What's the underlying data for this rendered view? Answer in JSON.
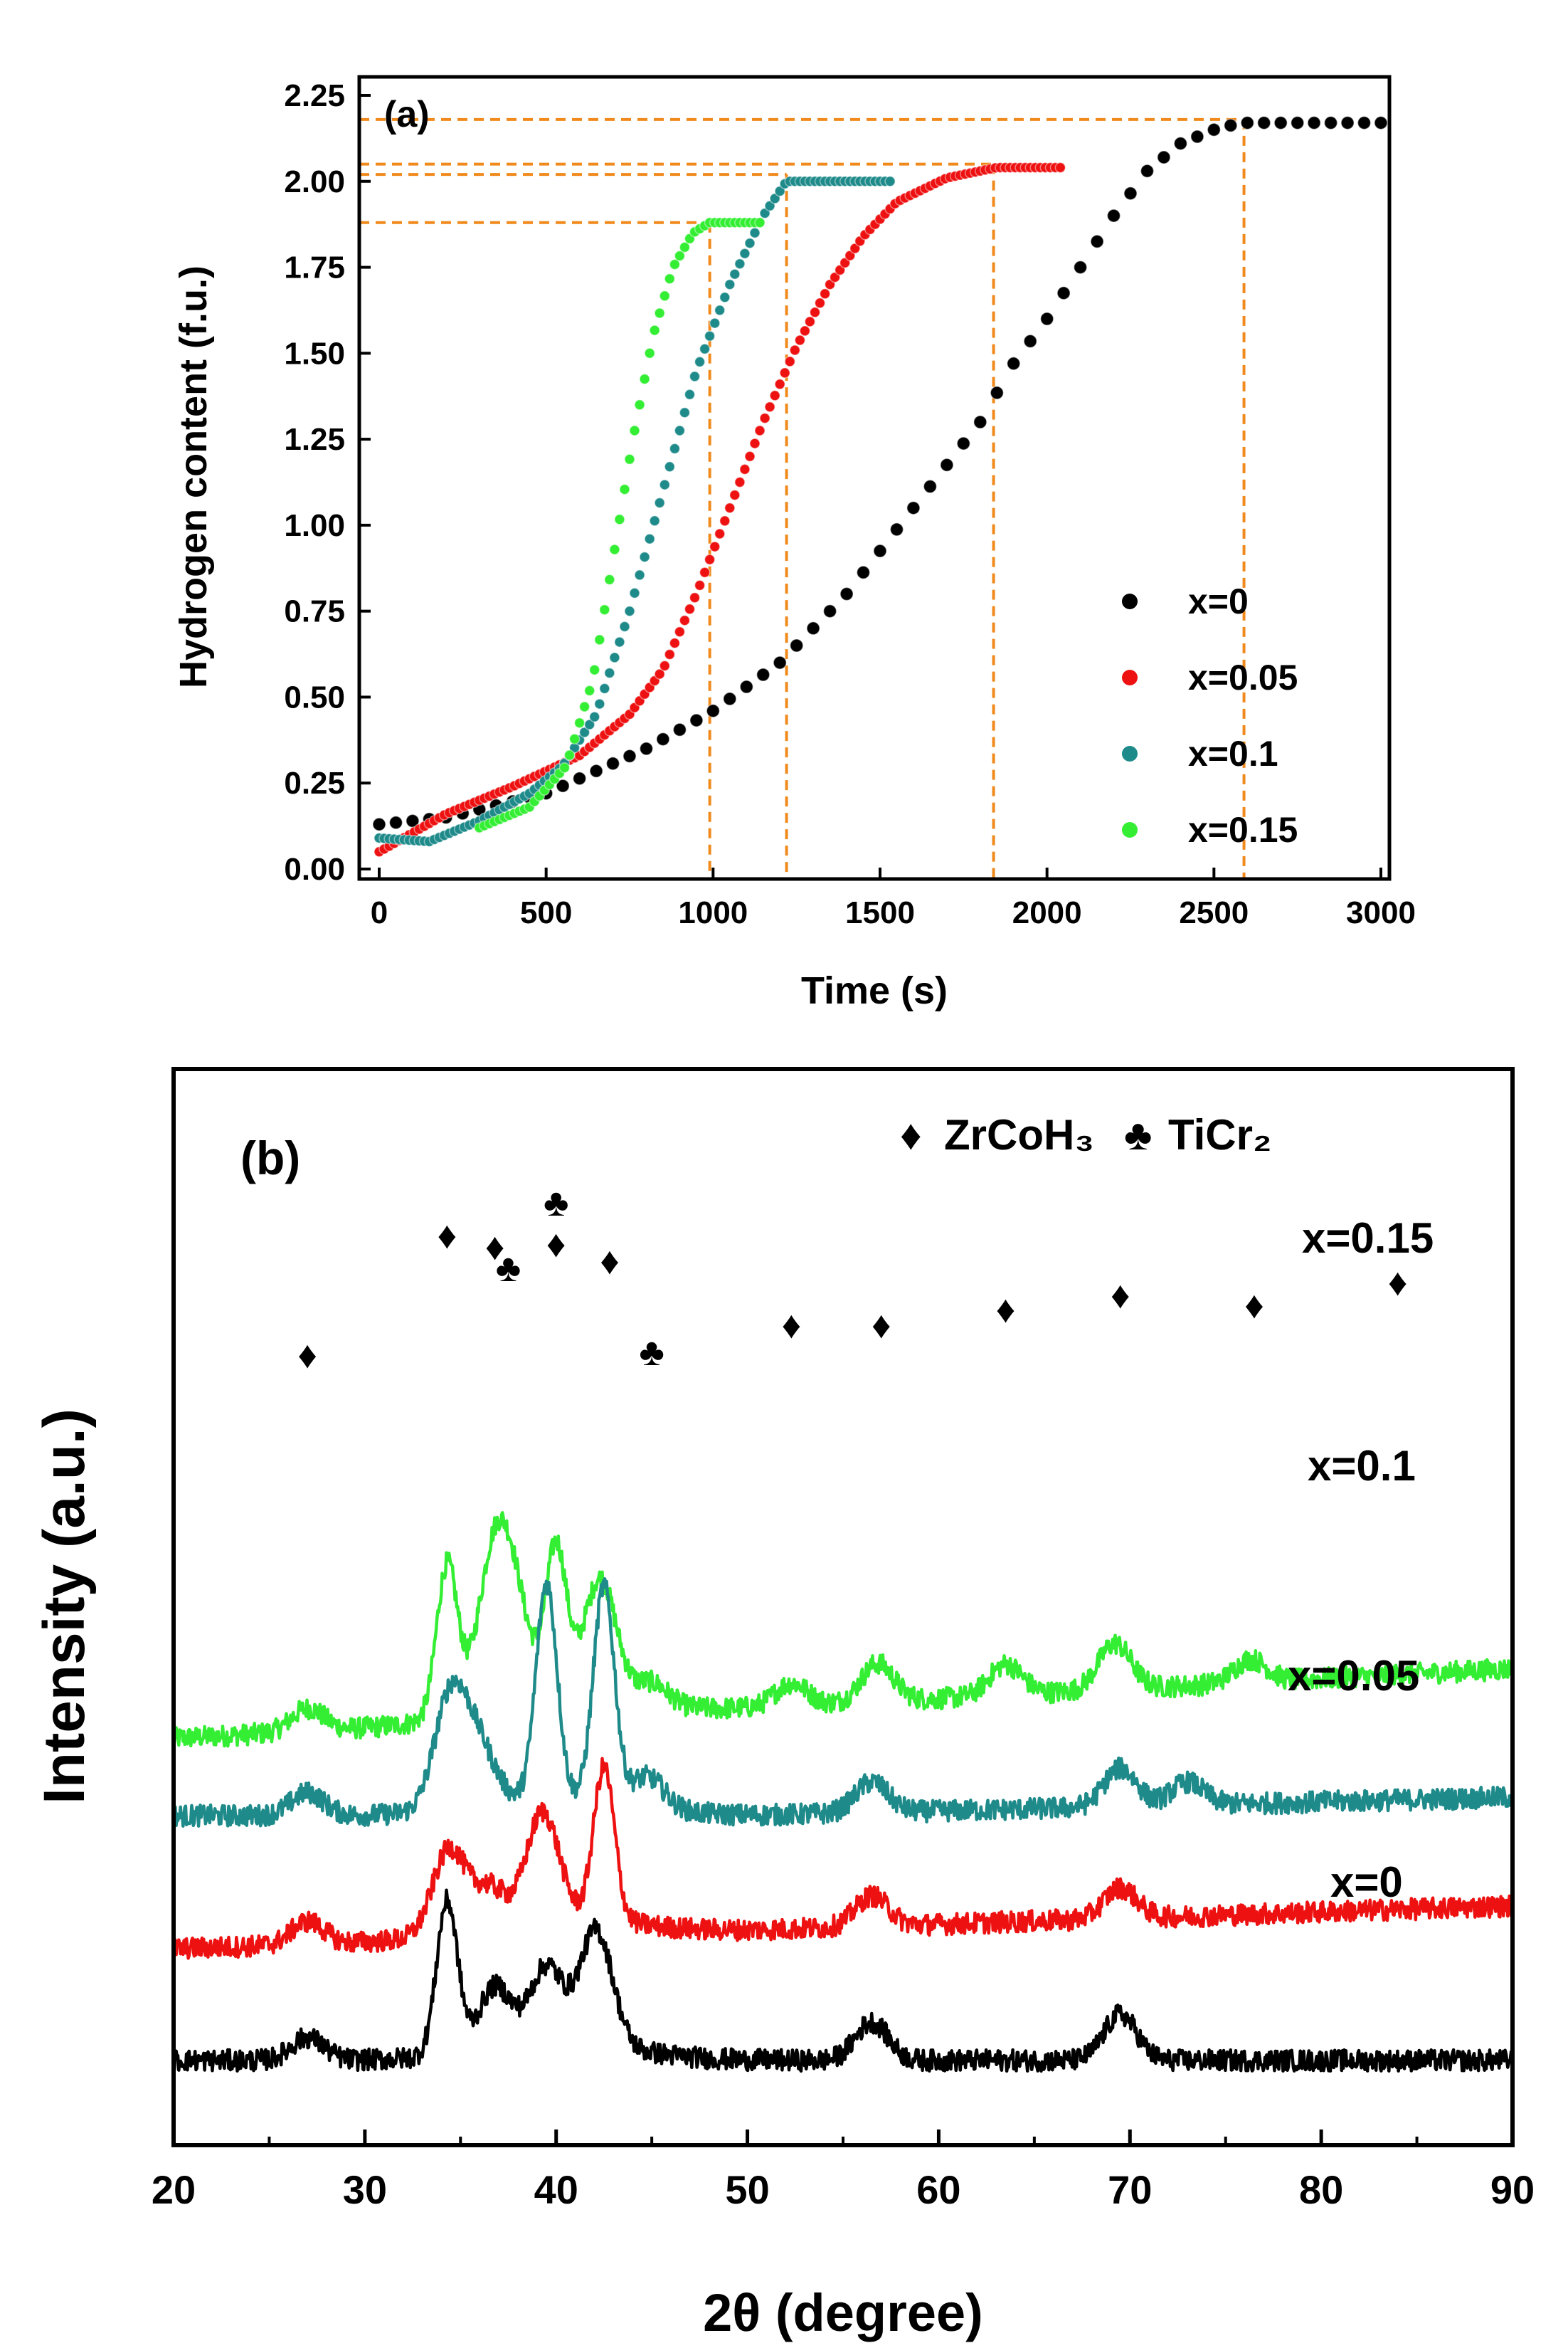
{
  "chart_data": [
    {
      "type": "scatter",
      "panel_label": "(a)",
      "xlabel": "Time (s)",
      "ylabel": "Hydrogen content (f.u.)",
      "xlim": [
        0,
        3000
      ],
      "ylim": [
        0,
        2.25
      ],
      "xticks": [
        "0",
        "500",
        "1000",
        "1500",
        "2000",
        "2500",
        "3000"
      ],
      "yticks": [
        "0.00",
        "0.25",
        "0.50",
        "0.75",
        "1.00",
        "1.25",
        "1.50",
        "1.75",
        "2.00",
        "2.25"
      ],
      "legend_position": "right",
      "series": [
        {
          "name": "x=0",
          "color": "#000000",
          "t_end": 3000,
          "step": 50,
          "points": [
            [
              0,
              0.13
            ],
            [
              200,
              0.15
            ],
            [
              500,
              0.22
            ],
            [
              800,
              0.35
            ],
            [
              1000,
              0.46
            ],
            [
              1200,
              0.6
            ],
            [
              1400,
              0.8
            ],
            [
              1600,
              1.05
            ],
            [
              1800,
              1.3
            ],
            [
              1900,
              1.47
            ],
            [
              2000,
              1.6
            ],
            [
              2100,
              1.75
            ],
            [
              2200,
              1.9
            ],
            [
              2300,
              2.03
            ],
            [
              2400,
              2.11
            ],
            [
              2500,
              2.15
            ],
            [
              2580,
              2.17
            ],
            [
              3000,
              2.17
            ]
          ]
        },
        {
          "name": "x=0.05",
          "color": "#ee1111",
          "t_end": 2040,
          "step": 15,
          "points": [
            [
              0,
              0.05
            ],
            [
              200,
              0.16
            ],
            [
              400,
              0.24
            ],
            [
              600,
              0.33
            ],
            [
              750,
              0.45
            ],
            [
              850,
              0.58
            ],
            [
              950,
              0.8
            ],
            [
              1050,
              1.05
            ],
            [
              1150,
              1.3
            ],
            [
              1250,
              1.52
            ],
            [
              1350,
              1.7
            ],
            [
              1450,
              1.84
            ],
            [
              1550,
              1.94
            ],
            [
              1700,
              2.01
            ],
            [
              1850,
              2.04
            ],
            [
              2040,
              2.04
            ]
          ]
        },
        {
          "name": "x=0.1",
          "color": "#1f8a8a",
          "t_end": 1530,
          "step": 15,
          "points": [
            [
              0,
              0.09
            ],
            [
              150,
              0.08
            ],
            [
              300,
              0.14
            ],
            [
              450,
              0.22
            ],
            [
              550,
              0.3
            ],
            [
              650,
              0.45
            ],
            [
              750,
              0.75
            ],
            [
              850,
              1.1
            ],
            [
              950,
              1.45
            ],
            [
              1050,
              1.7
            ],
            [
              1150,
              1.9
            ],
            [
              1220,
              2.0
            ],
            [
              1530,
              2.0
            ]
          ]
        },
        {
          "name": "x=0.15",
          "color": "#33ee33",
          "t_end": 1150,
          "step": 15,
          "points": [
            [
              300,
              0.12
            ],
            [
              450,
              0.18
            ],
            [
              560,
              0.3
            ],
            [
              640,
              0.55
            ],
            [
              700,
              0.9
            ],
            [
              760,
              1.25
            ],
            [
              820,
              1.55
            ],
            [
              880,
              1.75
            ],
            [
              940,
              1.85
            ],
            [
              990,
              1.88
            ],
            [
              1150,
              1.88
            ]
          ]
        }
      ],
      "reference_lines": {
        "horizontal": [
          {
            "y": 2.18,
            "x_end": 2590
          },
          {
            "y": 2.05,
            "x_end": 1840
          },
          {
            "y": 2.02,
            "x_end": 1220
          },
          {
            "y": 1.88,
            "x_end": 990
          }
        ],
        "vertical": [
          990,
          1220,
          1840,
          2590
        ]
      }
    },
    {
      "type": "line",
      "panel_label": "(b)",
      "xlabel": "2θ (degree)",
      "ylabel": "Intensity (a.u.)",
      "xlim": [
        20,
        90
      ],
      "xticks": [
        "20",
        "30",
        "40",
        "50",
        "60",
        "70",
        "80",
        "90"
      ],
      "legend": [
        {
          "symbol": "♦",
          "name": "ZrCoH₃"
        },
        {
          "symbol": "♣",
          "name": "TiCr₂"
        }
      ],
      "series": [
        {
          "name": "x=0.15",
          "color": "#33ee33",
          "baseline": 2.3,
          "peaks": [
            [
              27,
              0.15
            ],
            [
              34.3,
              1.0
            ],
            [
              36.7,
              0.9
            ],
            [
              37.8,
              0.6
            ],
            [
              40,
              1.0
            ],
            [
              42.3,
              0.8
            ],
            [
              45,
              0.15
            ],
            [
              52.3,
              0.15
            ],
            [
              56.8,
              0.25
            ],
            [
              63.5,
              0.2
            ],
            [
              69.2,
              0.3
            ],
            [
              76.3,
              0.15
            ]
          ]
        },
        {
          "name": "x=0.1",
          "color": "#1f8a8a",
          "baseline": 1.6,
          "peaks": [
            [
              27,
              0.15
            ],
            [
              34.5,
              0.75
            ],
            [
              36,
              0.35
            ],
            [
              39.5,
              1.4
            ],
            [
              42.5,
              1.4
            ],
            [
              44.8,
              0.2
            ],
            [
              56.5,
              0.2
            ],
            [
              69.5,
              0.25
            ],
            [
              73,
              0.15
            ]
          ]
        },
        {
          "name": "x=0.05",
          "color": "#ee1111",
          "baseline": 0.85,
          "peaks": [
            [
              27,
              0.15
            ],
            [
              34.4,
              0.55
            ],
            [
              36.5,
              0.25
            ],
            [
              39.3,
              0.7
            ],
            [
              42.5,
              1.0
            ],
            [
              56.5,
              0.2
            ],
            [
              69.5,
              0.2
            ]
          ]
        },
        {
          "name": "x=0",
          "color": "#000000",
          "baseline": 0.0,
          "peaks": [
            [
              27,
              0.15
            ],
            [
              34.3,
              1.0
            ],
            [
              36.8,
              0.4
            ],
            [
              39.5,
              0.5
            ],
            [
              42.1,
              0.75
            ],
            [
              56.5,
              0.25
            ],
            [
              69.5,
              0.3
            ]
          ]
        }
      ],
      "annotations": [
        {
          "symbol": "♦",
          "x": 27
        },
        {
          "symbol": "♦",
          "x": 34.3
        },
        {
          "symbol": "♦",
          "x": 36.8
        },
        {
          "symbol": "♣",
          "x": 37.5
        },
        {
          "symbol": "♣",
          "x": 40
        },
        {
          "symbol": "♦",
          "x": 40
        },
        {
          "symbol": "♦",
          "x": 42.8
        },
        {
          "symbol": "♣",
          "x": 45
        },
        {
          "symbol": "♦",
          "x": 52.3
        },
        {
          "symbol": "♦",
          "x": 57
        },
        {
          "symbol": "♦",
          "x": 63.5
        },
        {
          "symbol": "♦",
          "x": 69.5
        },
        {
          "symbol": "♦",
          "x": 76.5
        },
        {
          "symbol": "♦",
          "x": 84
        }
      ]
    }
  ]
}
